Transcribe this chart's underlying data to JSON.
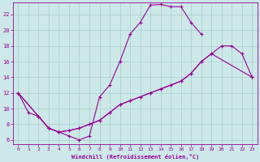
{
  "xlabel": "Windchill (Refroidissement éolien,°C)",
  "bg_color": "#cce8e8",
  "grid_color": "#aacccc",
  "line_color": "#990099",
  "xlim": [
    -0.5,
    23.5
  ],
  "ylim": [
    5.5,
    23.5
  ],
  "yticks": [
    6,
    8,
    10,
    12,
    14,
    16,
    18,
    20,
    22
  ],
  "xticks": [
    0,
    1,
    2,
    3,
    4,
    5,
    6,
    7,
    8,
    9,
    10,
    11,
    12,
    13,
    14,
    15,
    16,
    17,
    18,
    19,
    20,
    21,
    22,
    23
  ],
  "line1_x": [
    0,
    1,
    2,
    3,
    4,
    5,
    6,
    7,
    8,
    9,
    10,
    11,
    12,
    13,
    14,
    15,
    16,
    17,
    18
  ],
  "line1_y": [
    12,
    9.5,
    9.0,
    7.5,
    7.0,
    6.5,
    6.0,
    6.5,
    11.5,
    13.0,
    16.0,
    19.5,
    21.0,
    23.2,
    23.3,
    23.0,
    23.0,
    21.0,
    19.5
  ],
  "line2_x": [
    0,
    2,
    3,
    4,
    5,
    6,
    7,
    8,
    9,
    10,
    11,
    12,
    13,
    14,
    15,
    16,
    17,
    18,
    19,
    20,
    21,
    22,
    23
  ],
  "line2_y": [
    12,
    9.0,
    7.5,
    7.0,
    7.2,
    7.5,
    8.0,
    8.5,
    9.5,
    10.5,
    11.0,
    11.5,
    12.0,
    12.5,
    13.0,
    13.5,
    14.5,
    16.0,
    17.0,
    18.0,
    18.0,
    17.0,
    14.0
  ],
  "line3_x": [
    0,
    2,
    3,
    4,
    5,
    6,
    7,
    8,
    9,
    10,
    11,
    12,
    13,
    14,
    15,
    16,
    17,
    18,
    19,
    23
  ],
  "line3_y": [
    12,
    9.0,
    7.5,
    7.0,
    7.2,
    7.5,
    8.0,
    8.5,
    9.5,
    10.5,
    11.0,
    11.5,
    12.0,
    12.5,
    13.0,
    13.5,
    14.5,
    16.0,
    17.0,
    14.0
  ]
}
